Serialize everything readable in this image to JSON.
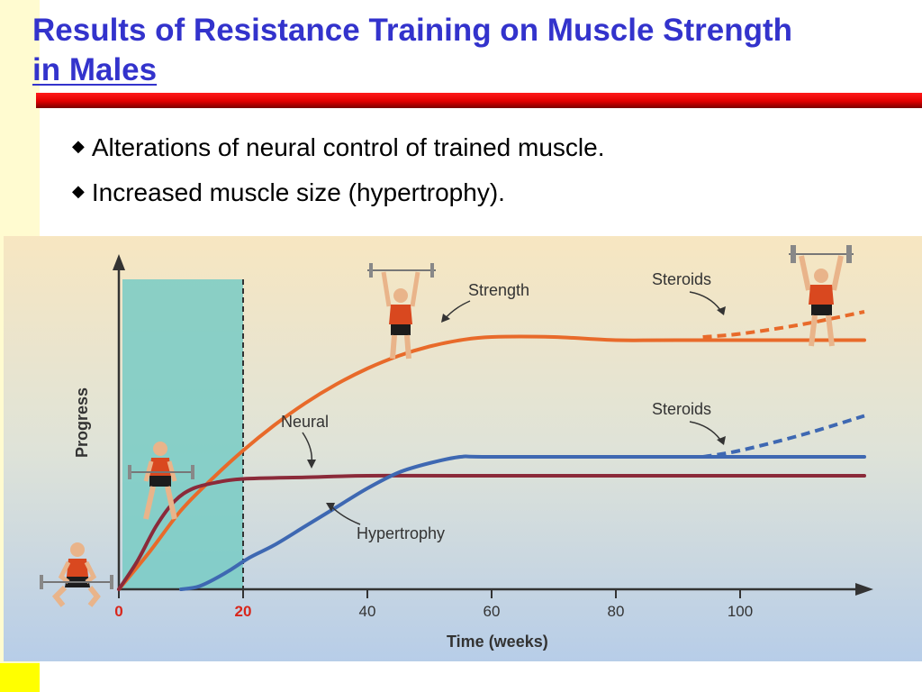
{
  "slide": {
    "title_line1": "Results of Resistance Training on Muscle Strength",
    "title_line2": "in Males",
    "title_color": "#3333cc",
    "bar_color": "#e00000",
    "bullets": [
      "Alterations of neural control of trained muscle.",
      "Increased muscle size (hypertrophy)."
    ]
  },
  "icons": {
    "bullet": "diamond-bullet-icon",
    "figures": [
      "weightlifter-squat-figure",
      "weightlifter-deadlift-figure",
      "weightlifter-overhead-figure",
      "weightlifter-overhead-steroids-figure"
    ]
  },
  "chart_data": {
    "type": "line",
    "xlabel": "Time (weeks)",
    "ylabel": "Progress",
    "x_ticks": [
      "0",
      "20",
      "40",
      "60",
      "80",
      "100"
    ],
    "x_tick_values": [
      0,
      20,
      40,
      60,
      80,
      100
    ],
    "xlim": [
      0,
      120
    ],
    "highlight_region": [
      0,
      20
    ],
    "series": [
      {
        "name": "Strength",
        "color": "#e86a2a",
        "points": [
          [
            0,
            0
          ],
          [
            5,
            0.12
          ],
          [
            10,
            0.25
          ],
          [
            15,
            0.35
          ],
          [
            20,
            0.44
          ],
          [
            25,
            0.52
          ],
          [
            30,
            0.59
          ],
          [
            35,
            0.65
          ],
          [
            40,
            0.7
          ],
          [
            45,
            0.74
          ],
          [
            50,
            0.77
          ],
          [
            55,
            0.79
          ],
          [
            60,
            0.8
          ],
          [
            70,
            0.8
          ],
          [
            80,
            0.79
          ],
          [
            90,
            0.79
          ],
          [
            120,
            0.79
          ]
        ]
      },
      {
        "name": "Neural",
        "color": "#8b2a3a",
        "points": [
          [
            0,
            0
          ],
          [
            3,
            0.09
          ],
          [
            6,
            0.2
          ],
          [
            9,
            0.28
          ],
          [
            12,
            0.32
          ],
          [
            16,
            0.34
          ],
          [
            20,
            0.35
          ],
          [
            30,
            0.355
          ],
          [
            40,
            0.36
          ],
          [
            60,
            0.36
          ],
          [
            120,
            0.36
          ]
        ]
      },
      {
        "name": "Hypertrophy",
        "color": "#3e68b2",
        "points": [
          [
            10,
            0
          ],
          [
            13,
            0.01
          ],
          [
            17,
            0.05
          ],
          [
            21,
            0.1
          ],
          [
            25,
            0.14
          ],
          [
            30,
            0.2
          ],
          [
            35,
            0.26
          ],
          [
            40,
            0.32
          ],
          [
            45,
            0.37
          ],
          [
            50,
            0.4
          ],
          [
            55,
            0.42
          ],
          [
            60,
            0.42
          ],
          [
            90,
            0.42
          ],
          [
            120,
            0.42
          ]
        ]
      }
    ],
    "steroid_branches": [
      {
        "from": "Strength",
        "color": "#e86a2a",
        "points": [
          [
            94,
            0.8
          ],
          [
            100,
            0.81
          ],
          [
            110,
            0.84
          ],
          [
            120,
            0.88
          ]
        ]
      },
      {
        "from": "Hypertrophy",
        "color": "#3e68b2",
        "points": [
          [
            94,
            0.42
          ],
          [
            100,
            0.44
          ],
          [
            110,
            0.49
          ],
          [
            120,
            0.55
          ]
        ]
      }
    ],
    "annotations": [
      "Strength",
      "Steroids",
      "Neural",
      "Steroids",
      "Hypertrophy"
    ]
  }
}
